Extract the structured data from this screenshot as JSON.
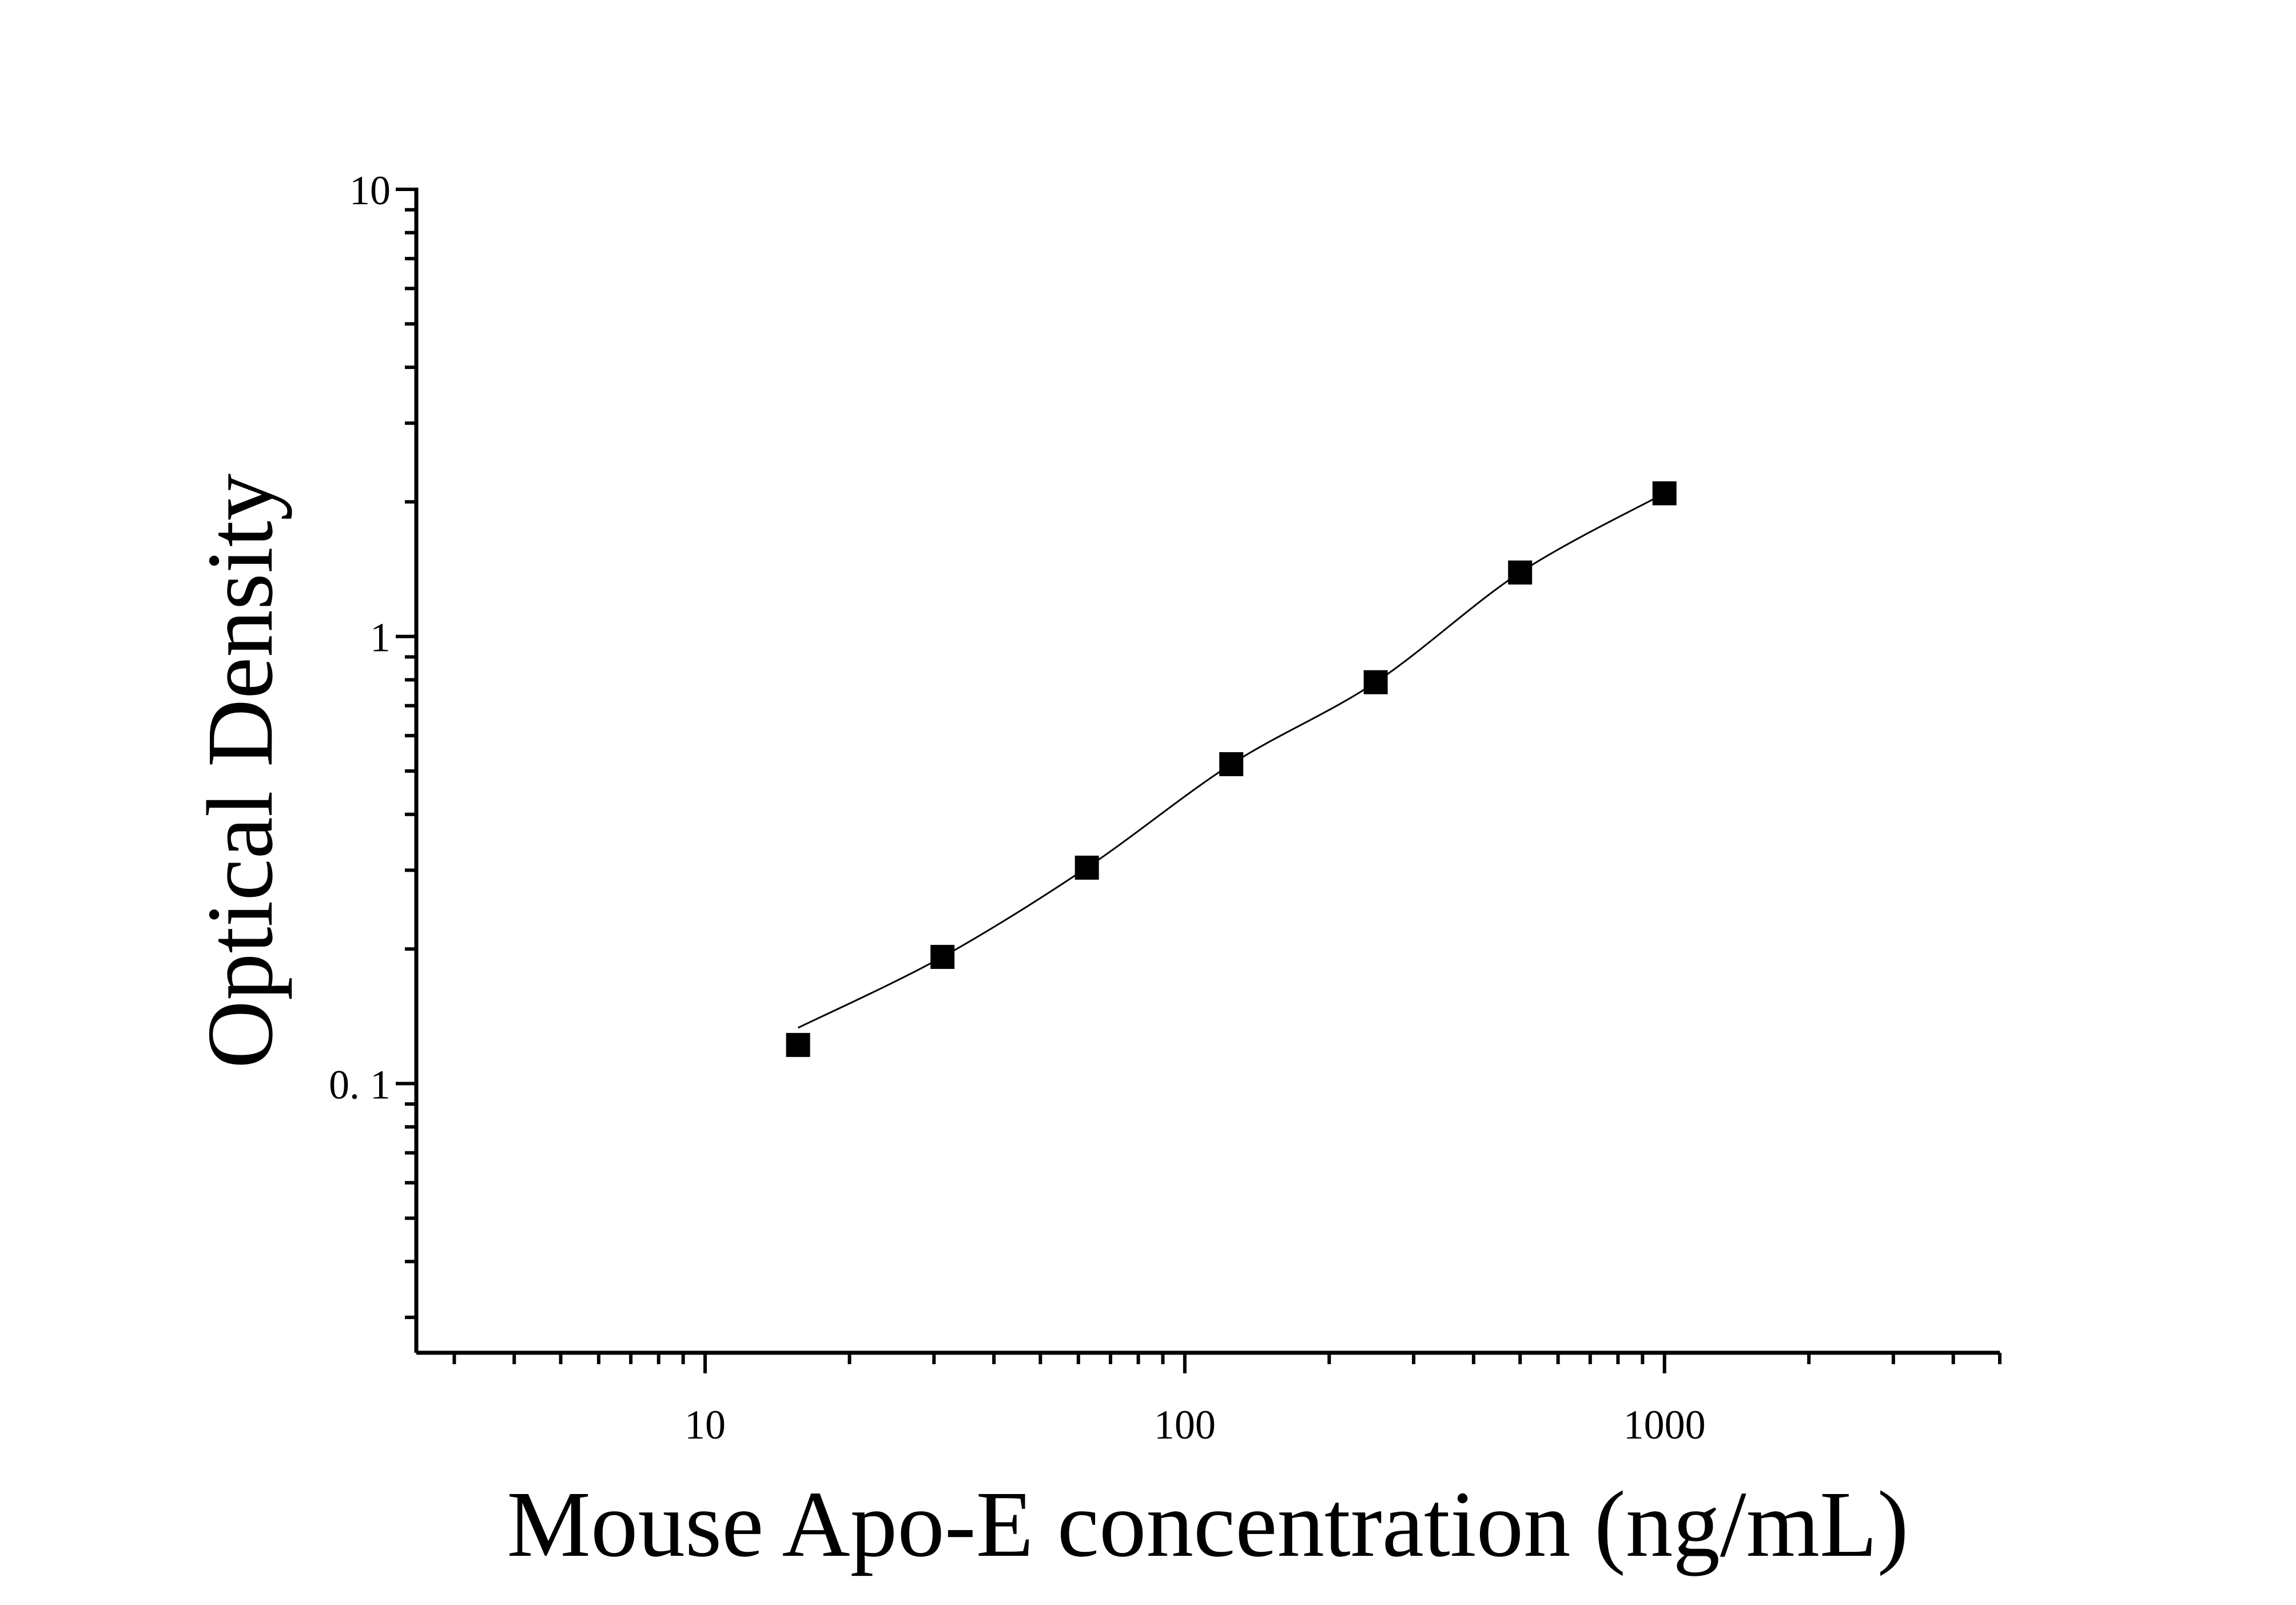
{
  "chart_data": {
    "type": "scatter",
    "title": "",
    "xlabel": "Mouse Apo-E concentration (ng/mL)",
    "ylabel": "Optical Density",
    "x_scale": "log",
    "y_scale": "log",
    "xlim": [
      2.5,
      5000
    ],
    "ylim": [
      0.025,
      10
    ],
    "x_ticks": [
      {
        "value": 10,
        "label": "10"
      },
      {
        "value": 100,
        "label": "100"
      },
      {
        "value": 1000,
        "label": "1000"
      }
    ],
    "y_ticks": [
      {
        "value": 0.1,
        "label": "0. 1"
      },
      {
        "value": 1,
        "label": "1"
      },
      {
        "value": 10,
        "label": "10"
      }
    ],
    "grid": false,
    "legend": "none",
    "marker": "square",
    "color": "#000000",
    "fit_curve": true,
    "series": [
      {
        "x": [
          15.625,
          31.25,
          62.5,
          125,
          250,
          500,
          1000
        ],
        "y": [
          0.122,
          0.192,
          0.304,
          0.518,
          0.79,
          1.39,
          2.09
        ]
      }
    ]
  }
}
